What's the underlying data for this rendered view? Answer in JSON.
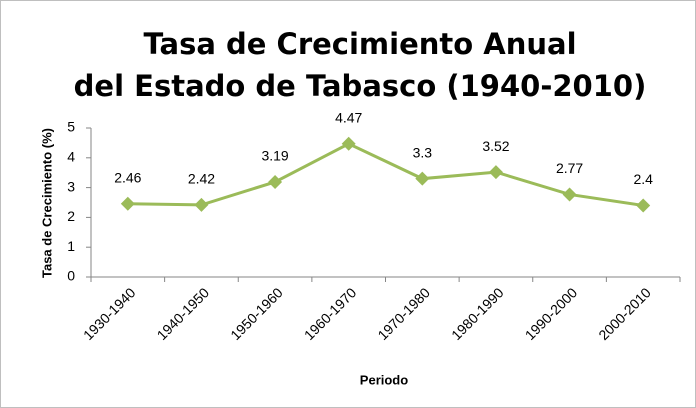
{
  "chart_data": {
    "type": "line",
    "title": [
      "Tasa de Crecimiento Anual",
      "del Estado de Tabasco (1940-2010)"
    ],
    "x_label": "Periodo",
    "y_label": "Tasa de Crecimiento (%)",
    "categories": [
      "1930-1940",
      "1940-1950",
      "1950-1960",
      "1960-1970",
      "1970-1980",
      "1980-1990",
      "1990-2000",
      "2000-2010"
    ],
    "values": [
      2.46,
      2.42,
      3.19,
      4.47,
      3.3,
      3.52,
      2.77,
      2.4
    ],
    "color": "#9bbb59",
    "ylim": [
      0,
      5
    ],
    "yticks": [
      0,
      1,
      2,
      3,
      4,
      5
    ],
    "grid": false
  }
}
